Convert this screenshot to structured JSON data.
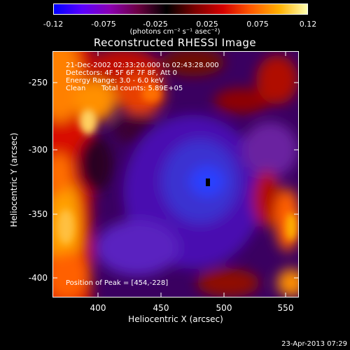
{
  "colorbar": {
    "ticks": [
      "-0.12",
      "-0.075",
      "-0.025",
      "0.025",
      "0.075",
      "0.12"
    ],
    "units": "(photons cm⁻² s⁻¹ asec⁻²)",
    "colors": [
      "#0000ff",
      "#5a00ff",
      "#8a00b0",
      "#6a0040",
      "#000000",
      "#7a0000",
      "#d40000",
      "#ff5a00",
      "#ffb000",
      "#ffffb0"
    ]
  },
  "title": "Reconstructed RHESSI Image",
  "annotations": {
    "time_range": "21-Dec-2002 02:33:20.000 to 02:43:28.000",
    "detectors": "Detectors: 4F 5F 6F 7F 8F, Att 0",
    "energy": "Energy Range: 3.0 - 6.0 keV",
    "method": "Clean",
    "counts": "Total counts: 5.89E+05",
    "peak": "Position of Peak = [454,-228]"
  },
  "axes": {
    "xlabel": "Heliocentric X (arcsec)",
    "ylabel": "Heliocentric Y (arcsec)",
    "xticks": [
      "400",
      "450",
      "500",
      "550"
    ],
    "yticks": [
      "-250",
      "-300",
      "-350",
      "-400"
    ]
  },
  "footer_timestamp": "23-Apr-2013 07:29"
}
